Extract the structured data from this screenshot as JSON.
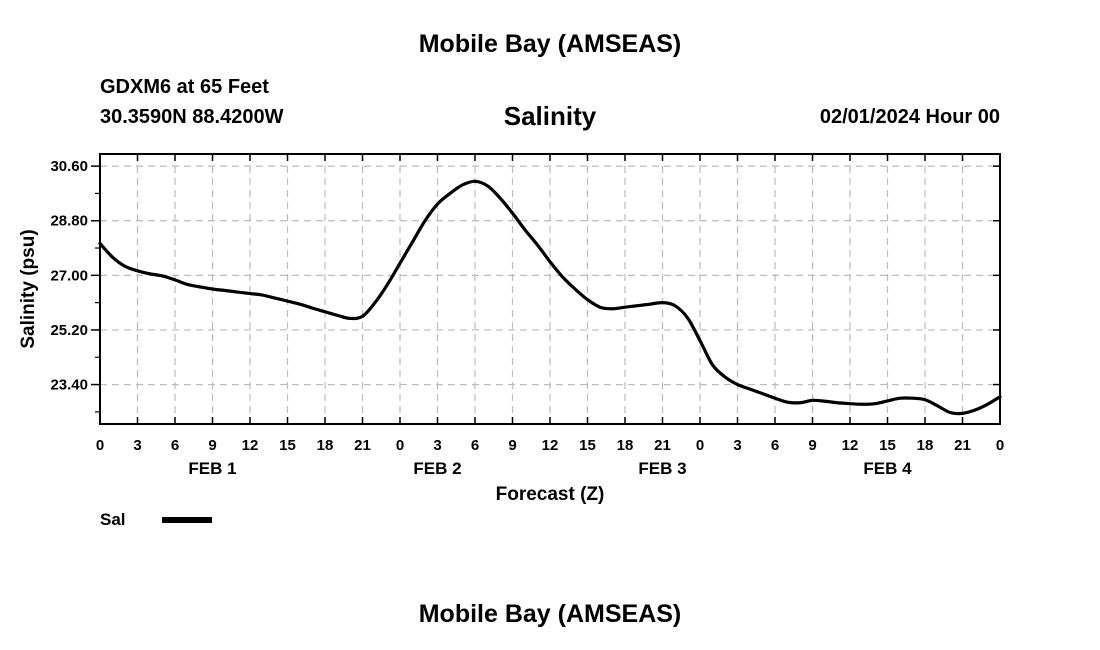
{
  "header": {
    "title": "Mobile Bay (AMSEAS)",
    "station": "GDXM6 at 65 Feet",
    "coords": "30.3590N  88.4200W",
    "variable": "Salinity",
    "timestamp": "02/01/2024 Hour 00"
  },
  "footer": {
    "title": "Mobile Bay (AMSEAS)"
  },
  "legend": {
    "label": "Sal"
  },
  "chart_data": {
    "type": "line",
    "title": "Salinity",
    "xlabel": "Forecast (Z)",
    "ylabel": "Salinity (psu)",
    "x_unit": "hours",
    "xlim": [
      0,
      72
    ],
    "ylim": [
      22.1,
      31.0
    ],
    "yticks": [
      30.6,
      28.8,
      27.0,
      25.2,
      23.4
    ],
    "ytick_labels": [
      "30.60",
      "28.80",
      "27.00",
      "25.20",
      "23.40"
    ],
    "xticks": [
      0,
      3,
      6,
      9,
      12,
      15,
      18,
      21,
      24,
      27,
      30,
      33,
      36,
      39,
      42,
      45,
      48,
      51,
      54,
      57,
      60,
      63,
      66,
      69,
      72
    ],
    "xtick_labels": [
      "0",
      "3",
      "6",
      "9",
      "12",
      "15",
      "18",
      "21",
      "0",
      "3",
      "6",
      "9",
      "12",
      "15",
      "18",
      "21",
      "0",
      "3",
      "6",
      "9",
      "12",
      "15",
      "18",
      "21",
      "0"
    ],
    "day_labels": [
      {
        "label": "FEB 1",
        "x": 9
      },
      {
        "label": "FEB 2",
        "x": 27
      },
      {
        "label": "FEB 3",
        "x": 45
      },
      {
        "label": "FEB 4",
        "x": 63
      }
    ],
    "grid": true,
    "legend_position": "bottom-left",
    "series": [
      {
        "name": "Sal",
        "color": "#000000",
        "x": [
          0,
          1,
          2,
          3,
          4,
          5,
          6,
          7,
          8,
          9,
          10,
          11,
          12,
          13,
          14,
          15,
          16,
          17,
          18,
          19,
          20,
          21,
          22,
          23,
          24,
          25,
          26,
          27,
          28,
          29,
          30,
          31,
          32,
          33,
          34,
          35,
          36,
          37,
          38,
          39,
          40,
          41,
          42,
          43,
          44,
          45,
          46,
          47,
          48,
          49,
          50,
          51,
          52,
          53,
          54,
          55,
          56,
          57,
          58,
          59,
          60,
          61,
          62,
          63,
          64,
          65,
          66,
          67,
          68,
          69,
          70,
          71,
          72
        ],
        "values": [
          28.05,
          27.6,
          27.3,
          27.15,
          27.05,
          26.98,
          26.85,
          26.7,
          26.62,
          26.55,
          26.5,
          26.45,
          26.4,
          26.35,
          26.25,
          26.15,
          26.05,
          25.92,
          25.8,
          25.68,
          25.58,
          25.65,
          26.1,
          26.7,
          27.4,
          28.1,
          28.8,
          29.35,
          29.7,
          29.98,
          30.1,
          29.95,
          29.55,
          29.05,
          28.5,
          28.0,
          27.45,
          26.95,
          26.55,
          26.2,
          25.95,
          25.9,
          25.95,
          26.0,
          26.05,
          26.1,
          26.0,
          25.6,
          24.85,
          24.05,
          23.65,
          23.4,
          23.25,
          23.1,
          22.95,
          22.82,
          22.8,
          22.88,
          22.85,
          22.8,
          22.77,
          22.75,
          22.77,
          22.86,
          22.95,
          22.95,
          22.9,
          22.7,
          22.48,
          22.45,
          22.56,
          22.75,
          23.0
        ]
      }
    ]
  }
}
